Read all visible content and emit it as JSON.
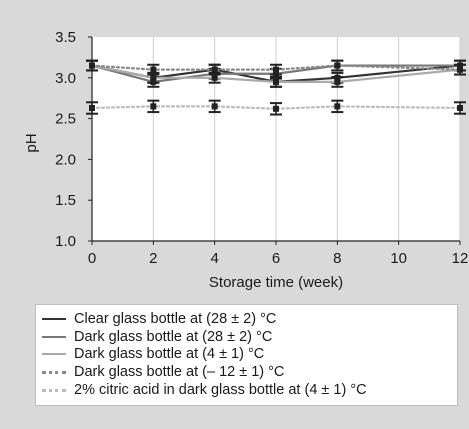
{
  "chart_data": {
    "type": "line",
    "xlabel": "Storage time (week)",
    "ylabel": "pH",
    "x": [
      0,
      2,
      4,
      6,
      8,
      12
    ],
    "xticks": [
      0,
      2,
      4,
      6,
      8,
      10,
      12
    ],
    "yticks": [
      "1.0",
      "1.5",
      "2.0",
      "2.5",
      "3.0",
      "3.5"
    ],
    "xlim": [
      0,
      12
    ],
    "ylim": [
      1.0,
      3.5
    ],
    "grid": "vertical",
    "legend_position": "bottom",
    "series": [
      {
        "name": "Clear glass bottle at (28 ± 2) °C",
        "color": "#333333",
        "style": "solid",
        "values": [
          3.15,
          3.0,
          3.1,
          2.95,
          3.0,
          3.15
        ],
        "errors": [
          0.06,
          0.06,
          0.06,
          0.06,
          0.06,
          0.06
        ]
      },
      {
        "name": "Dark glass bottle at (28 ± 2) °C",
        "color": "#777777",
        "style": "solid",
        "values": [
          3.15,
          2.95,
          3.05,
          3.05,
          3.15,
          3.15
        ],
        "errors": [
          0.06,
          0.06,
          0.06,
          0.06,
          0.06,
          0.06
        ]
      },
      {
        "name": "Dark glass bottle at (4 ± 1) °C",
        "color": "#aaaaaa",
        "style": "solid",
        "values": [
          3.15,
          3.0,
          3.0,
          2.95,
          2.95,
          3.1
        ],
        "errors": [
          0.06,
          0.06,
          0.06,
          0.06,
          0.06,
          0.06
        ]
      },
      {
        "name": "Dark glass bottle at (– 12 ± 1) °C",
        "color": "#888888",
        "style": "dotted",
        "values": [
          3.15,
          3.1,
          3.1,
          3.1,
          3.15,
          3.1
        ],
        "errors": [
          0.06,
          0.06,
          0.06,
          0.06,
          0.06,
          0.06
        ]
      },
      {
        "name": "2% citric acid in dark glass bottle at (4 ± 1) °C",
        "color": "#bbbbbb",
        "style": "dotted",
        "values": [
          2.63,
          2.65,
          2.65,
          2.62,
          2.65,
          2.63
        ],
        "errors": [
          0.07,
          0.07,
          0.07,
          0.07,
          0.07,
          0.07
        ]
      }
    ]
  }
}
